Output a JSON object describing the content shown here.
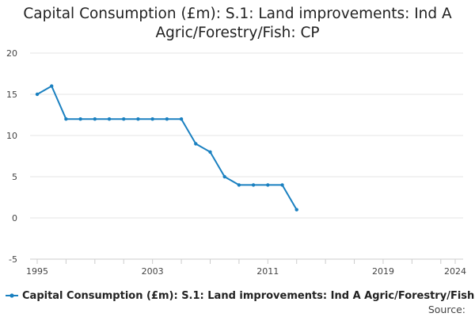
{
  "chart_data": {
    "type": "line",
    "title": "Capital Consumption (£m): S.1: Land improvements: Ind A Agric/Forestry/Fish: CP",
    "xlabel": "",
    "ylabel": "",
    "xlim": [
      1995,
      2024
    ],
    "ylim": [
      -5,
      20
    ],
    "y_ticks": [
      -5,
      0,
      5,
      10,
      15,
      20
    ],
    "x_ticks": [
      1995,
      2003,
      2011,
      2019,
      2024
    ],
    "grid": true,
    "legend_position": "bottom",
    "series": [
      {
        "name": "Capital Consumption (£m): S.1: Land improvements: Ind A Agric/Forestry/Fish: CP",
        "color": "#1a80c0",
        "x": [
          1995,
          1996,
          1997,
          1998,
          1999,
          2000,
          2001,
          2002,
          2003,
          2004,
          2005,
          2006,
          2007,
          2008,
          2009,
          2010,
          2011,
          2012,
          2013
        ],
        "values": [
          15,
          16,
          12,
          12,
          12,
          12,
          12,
          12,
          12,
          12,
          12,
          9,
          8,
          5,
          4,
          4,
          4,
          4,
          1
        ]
      }
    ]
  },
  "legend": {
    "label": "Capital Consumption (£m): S.1: Land improvements: Ind A Agric/Forestry/Fish: CP"
  },
  "source": {
    "label": "Source:"
  }
}
